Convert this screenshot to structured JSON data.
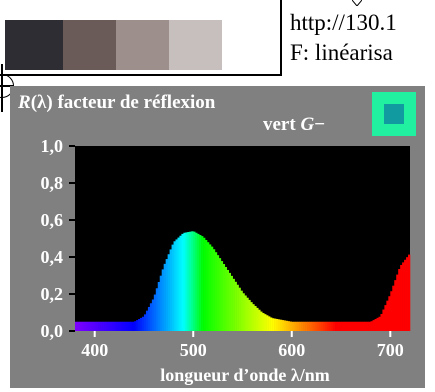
{
  "header": {
    "url": "http://130.1",
    "function_line": "F: linéarisa"
  },
  "swatches": [
    {
      "color": "#2e2d33"
    },
    {
      "color": "#6a5b59"
    },
    {
      "color": "#9d8f8c"
    },
    {
      "color": "#c7bfbd"
    },
    {
      "color": "#ffffff"
    }
  ],
  "colors": {
    "panel_background": "#808080",
    "plot_background": "#000000",
    "text_white": "#ffffff",
    "sample_outer": "#20f0a0",
    "sample_inner": "#119aa0"
  },
  "chart_data": {
    "type": "area",
    "title_line1_symbol": "R",
    "title_line1_arg": "(λ)",
    "title_line1_text": " facteur de réflexion",
    "title_line2_text": "vert ",
    "title_line2_symbol": "G",
    "title_line2_sub": "−",
    "xlabel": "longueur d’onde λ/nm",
    "ylabel": "",
    "xlim": [
      380,
      720
    ],
    "ylim": [
      0.0,
      1.0
    ],
    "xticks": [
      "400",
      "500",
      "600",
      "700"
    ],
    "xtick_values": [
      400,
      500,
      600,
      700
    ],
    "yticks": [
      "1,0",
      "0,8",
      "0,6",
      "0,4",
      "0,2",
      "0,0"
    ],
    "ytick_values": [
      1.0,
      0.8,
      0.6,
      0.4,
      0.2,
      0.0
    ],
    "x": [
      380,
      390,
      400,
      410,
      420,
      430,
      440,
      450,
      460,
      470,
      480,
      490,
      500,
      510,
      520,
      530,
      540,
      550,
      560,
      570,
      580,
      590,
      600,
      610,
      620,
      630,
      640,
      650,
      660,
      670,
      680,
      690,
      700,
      710,
      720
    ],
    "values": [
      0.05,
      0.05,
      0.05,
      0.05,
      0.05,
      0.05,
      0.05,
      0.08,
      0.18,
      0.35,
      0.48,
      0.53,
      0.54,
      0.51,
      0.45,
      0.37,
      0.29,
      0.21,
      0.15,
      0.1,
      0.07,
      0.06,
      0.05,
      0.05,
      0.05,
      0.05,
      0.05,
      0.05,
      0.05,
      0.05,
      0.05,
      0.08,
      0.2,
      0.35,
      0.42
    ]
  }
}
